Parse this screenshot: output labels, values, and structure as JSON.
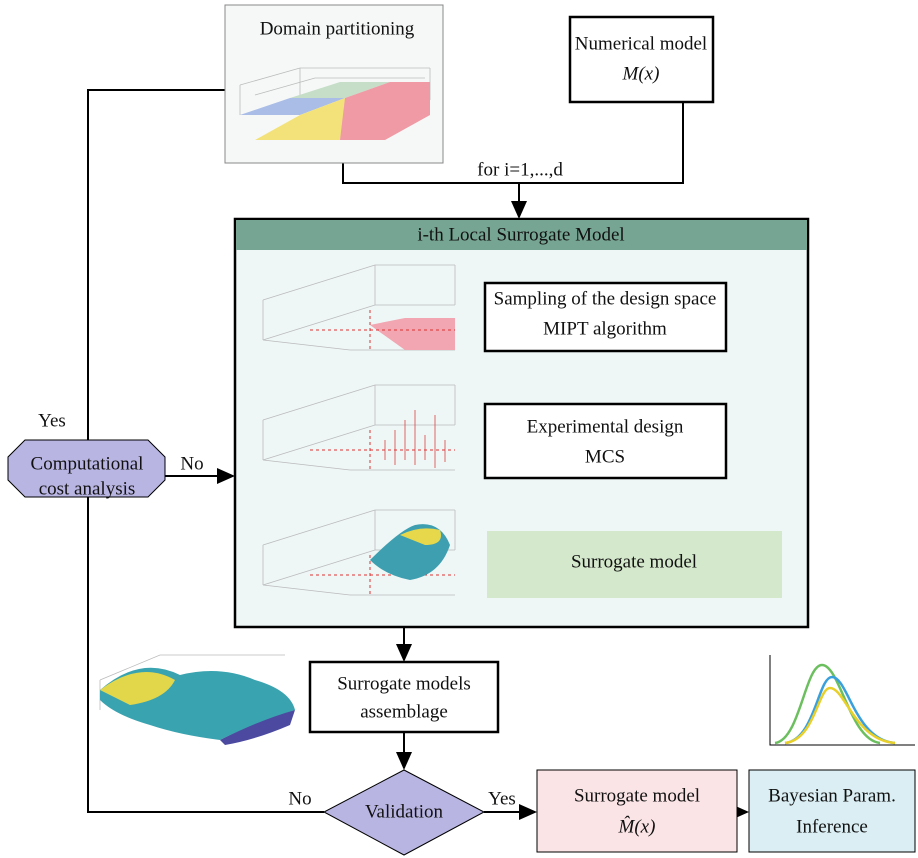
{
  "header": {
    "partition": "Domain partitioning",
    "numerical_model": [
      "Numerical model",
      "M(x)"
    ],
    "loop": "for i=1,...,d"
  },
  "local_model": {
    "title": "i-th Local Surrogate Model",
    "steps": [
      [
        "Sampling of the design space",
        "MIPT algorithm"
      ],
      [
        "Experimental design",
        "MCS"
      ],
      [
        "Surrogate model"
      ]
    ]
  },
  "cost_analysis": {
    "label": [
      "Computational",
      "cost analysis"
    ],
    "yes": "Yes",
    "no": "No"
  },
  "assemblage": [
    "Surrogate models",
    "assemblage"
  ],
  "validation": {
    "label": "Validation",
    "no": "No",
    "yes": "Yes"
  },
  "result": [
    "Surrogate model",
    "M̂(x)"
  ],
  "inference": [
    "Bayesian Param.",
    "Inference"
  ]
}
